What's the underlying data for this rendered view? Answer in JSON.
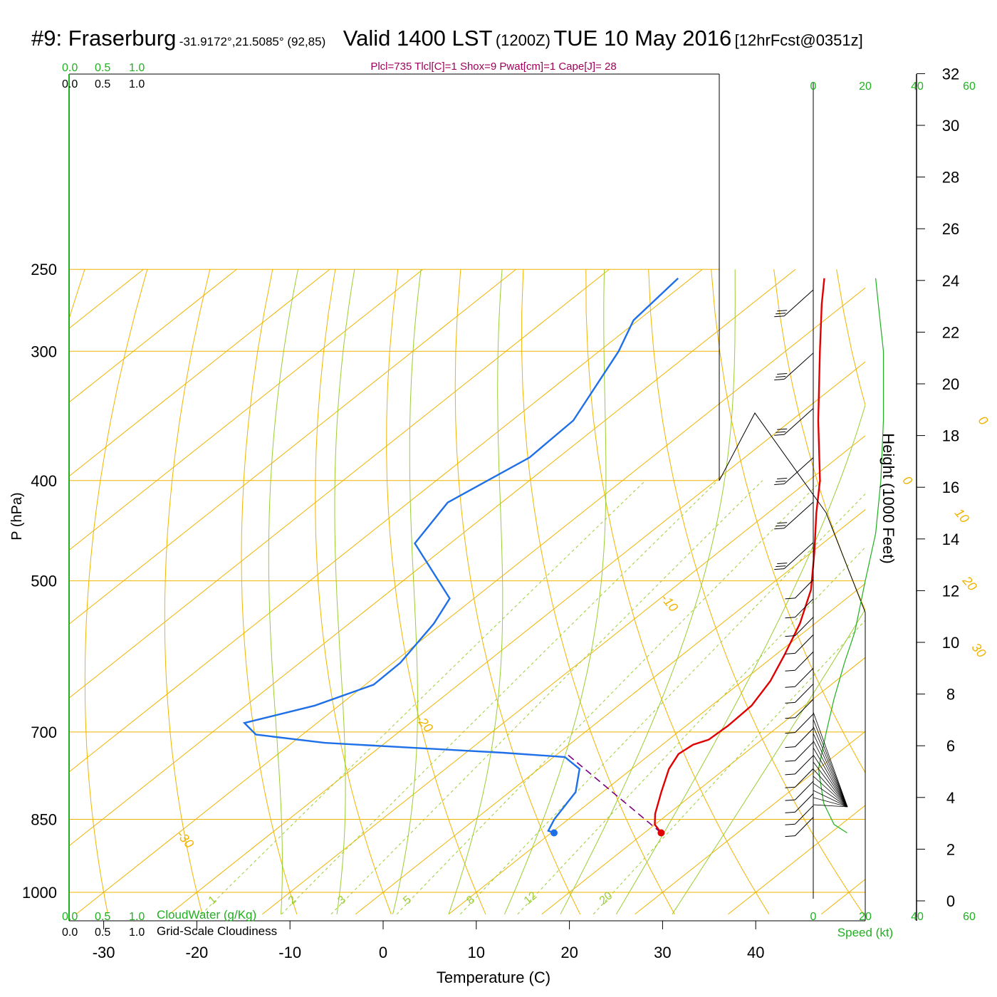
{
  "header": {
    "station": "#9: Fraserburg",
    "coords": "-31.9172°,21.5085° (92,85)",
    "valid": "Valid 1400 LST",
    "zulu": "(1200Z)",
    "date": "TUE 10 May 2016",
    "forecast": "[12hrFcst@0351z]"
  },
  "indices": "Plcl=735 Tlcl[C]=1 Shox=9 Pwat[cm]=1 Cape[J]= 28",
  "colors": {
    "isotherm": "#f0b400",
    "dry_adiabat": "#f0b400",
    "moist_adiabat": "#9acd32",
    "mixing_ratio": "#9acd32",
    "temperature": "#e00000",
    "dewpoint": "#1e6fe8",
    "parcel": "#7a0080",
    "green_text": "#20b020",
    "indices_text": "#a0005a"
  },
  "chart_data": {
    "type": "line",
    "title": "#9: Fraserburg -31.9172°,21.5085° (92,85) Valid 1400 LST (1200Z) TUE 10 May 2016 [12hrFcst@0351z]",
    "xlabel": "Temperature (C)",
    "ylabel": "P (hPa)",
    "y2label": "Height (1000 Feet)",
    "x_ticks": [
      "-30",
      "-20",
      "-10",
      "0",
      "10",
      "20",
      "30",
      "40"
    ],
    "x_tick_values": [
      -30,
      -20,
      -10,
      0,
      10,
      20,
      30,
      40
    ],
    "y_ticks": [
      "250",
      "300",
      "400",
      "500",
      "700",
      "850",
      "1000"
    ],
    "y_tick_values": [
      250,
      300,
      400,
      500,
      700,
      850,
      1000
    ],
    "height_ticks": [
      "0",
      "2",
      "4",
      "6",
      "8",
      "10",
      "12",
      "14",
      "16",
      "18",
      "20",
      "22",
      "24",
      "26",
      "28",
      "30",
      "32"
    ],
    "height_tick_values": [
      0,
      2,
      4,
      6,
      8,
      10,
      12,
      14,
      16,
      18,
      20,
      22,
      24,
      26,
      28,
      30,
      32
    ],
    "xlim": [
      -34,
      36
    ],
    "ylim": [
      1050,
      250
    ],
    "scale": "log-p skew-T",
    "grid": true,
    "isotherm_labels": [
      {
        "label": "10",
        "t": 10,
        "p": 300
      },
      {
        "label": "0",
        "t": 0,
        "p": 400
      },
      {
        "label": "-10",
        "t": -10,
        "p": 520
      },
      {
        "label": "-20",
        "t": -20,
        "p": 680
      },
      {
        "label": "-30",
        "t": -30,
        "p": 880
      },
      {
        "label": "0",
        "t": 0,
        "p": 350
      },
      {
        "label": "10",
        "t": 10,
        "p": 430
      },
      {
        "label": "20",
        "t": 20,
        "p": 500
      },
      {
        "label": "30",
        "t": 30,
        "p": 580
      }
    ],
    "mixing_ratio_labels": [
      "1",
      "2",
      "3",
      "5",
      "8",
      "12",
      "20"
    ],
    "mixing_ratio_values": [
      1,
      2,
      3,
      5,
      8,
      12,
      20
    ],
    "series": [
      {
        "name": "Temperature",
        "points": [
          {
            "p": 876,
            "t": 21.8
          },
          {
            "p": 860,
            "t": 20.0
          },
          {
            "p": 840,
            "t": 18.6
          },
          {
            "p": 800,
            "t": 16.3
          },
          {
            "p": 760,
            "t": 14.0
          },
          {
            "p": 735,
            "t": 13.0
          },
          {
            "p": 720,
            "t": 13.3
          },
          {
            "p": 712,
            "t": 14.3
          },
          {
            "p": 690,
            "t": 14.5
          },
          {
            "p": 660,
            "t": 14.3
          },
          {
            "p": 625,
            "t": 13.0
          },
          {
            "p": 590,
            "t": 11.0
          },
          {
            "p": 550,
            "t": 8.4
          },
          {
            "p": 510,
            "t": 5.0
          },
          {
            "p": 470,
            "t": 0.4
          },
          {
            "p": 430,
            "t": -4.8
          },
          {
            "p": 400,
            "t": -8.8
          },
          {
            "p": 350,
            "t": -17.1
          },
          {
            "p": 300,
            "t": -26.3
          },
          {
            "p": 270,
            "t": -32.5
          },
          {
            "p": 255,
            "t": -35.7
          }
        ]
      },
      {
        "name": "Dewpoint",
        "points": [
          {
            "p": 876,
            "t": 10.3
          },
          {
            "p": 872,
            "t": 9.4
          },
          {
            "p": 850,
            "t": 8.5
          },
          {
            "p": 800,
            "t": 7.1
          },
          {
            "p": 760,
            "t": 4.4
          },
          {
            "p": 740,
            "t": 1.2
          },
          {
            "p": 733,
            "t": -6.0
          },
          {
            "p": 726,
            "t": -15.0
          },
          {
            "p": 717,
            "t": -26.5
          },
          {
            "p": 704,
            "t": -35.0
          },
          {
            "p": 686,
            "t": -37.8
          },
          {
            "p": 660,
            "t": -32.6
          },
          {
            "p": 630,
            "t": -29.1
          },
          {
            "p": 600,
            "t": -29.2
          },
          {
            "p": 550,
            "t": -30.9
          },
          {
            "p": 520,
            "t": -32.6
          },
          {
            "p": 460,
            "t": -43.8
          },
          {
            "p": 420,
            "t": -45.8
          },
          {
            "p": 380,
            "t": -43.1
          },
          {
            "p": 350,
            "t": -43.4
          },
          {
            "p": 300,
            "t": -47.9
          },
          {
            "p": 280,
            "t": -50.5
          },
          {
            "p": 255,
            "t": -51.4
          }
        ]
      },
      {
        "name": "Parcel",
        "points": [
          {
            "p": 876,
            "t": 21.8
          },
          {
            "p": 735,
            "t": 1.0
          }
        ]
      }
    ],
    "surface": {
      "temperature": 21.8,
      "dewpoint": 10.3,
      "p": 876
    },
    "cloud_scale": {
      "cloudwater_label": "CloudWater (g/Kg)",
      "cloudiness_label": "Grid-Scale Cloudiness",
      "ticks": [
        "0.0",
        "0.5",
        "1.0"
      ],
      "tick_values": [
        0.0,
        0.5,
        1.0
      ]
    },
    "wind_speed": {
      "xlabel": "Speed (kt)",
      "ticks": [
        "0",
        "20",
        "40",
        "60"
      ],
      "tick_values": [
        0,
        20,
        40,
        60
      ],
      "profile": [
        {
          "p": 876,
          "kt": 13
        },
        {
          "p": 860,
          "kt": 8
        },
        {
          "p": 820,
          "kt": 4
        },
        {
          "p": 760,
          "kt": 2
        },
        {
          "p": 700,
          "kt": 5
        },
        {
          "p": 650,
          "kt": 8
        },
        {
          "p": 600,
          "kt": 12
        },
        {
          "p": 560,
          "kt": 16
        },
        {
          "p": 500,
          "kt": 20
        },
        {
          "p": 450,
          "kt": 24
        },
        {
          "p": 400,
          "kt": 26
        },
        {
          "p": 350,
          "kt": 27
        },
        {
          "p": 300,
          "kt": 27
        },
        {
          "p": 270,
          "kt": 25
        },
        {
          "p": 255,
          "kt": 24
        }
      ]
    }
  }
}
